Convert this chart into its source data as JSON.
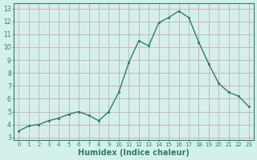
{
  "x": [
    0,
    1,
    2,
    3,
    4,
    5,
    6,
    7,
    8,
    9,
    10,
    11,
    12,
    13,
    14,
    15,
    16,
    17,
    18,
    19,
    20,
    21,
    22,
    23
  ],
  "y": [
    3.5,
    3.9,
    4.0,
    4.3,
    4.5,
    4.8,
    5.0,
    4.7,
    4.3,
    5.0,
    6.5,
    8.8,
    10.5,
    10.1,
    11.9,
    12.3,
    12.8,
    12.3,
    10.4,
    8.7,
    7.2,
    6.5,
    6.2,
    5.4
  ],
  "line_color": "#2e7d6e",
  "marker": "s",
  "marker_size": 2.0,
  "line_width": 1.0,
  "xlabel": "Humidex (Indice chaleur)",
  "xlabel_fontsize": 7,
  "xlabel_fontweight": "bold",
  "xlabel_color": "#2e7d6e",
  "ylabel_ticks": [
    3,
    4,
    5,
    6,
    7,
    8,
    9,
    10,
    11,
    12,
    13
  ],
  "xlim": [
    -0.5,
    23.5
  ],
  "ylim": [
    2.8,
    13.4
  ],
  "xticks": [
    0,
    1,
    2,
    3,
    4,
    5,
    6,
    7,
    8,
    9,
    10,
    11,
    12,
    13,
    14,
    15,
    16,
    17,
    18,
    19,
    20,
    21,
    22,
    23
  ],
  "bg_color": "#d4f0eb",
  "grid_color": "#c8a0a8",
  "tick_color": "#2e7d6e",
  "tick_label_color": "#2e7d6e",
  "spine_color": "#2e7d6e"
}
